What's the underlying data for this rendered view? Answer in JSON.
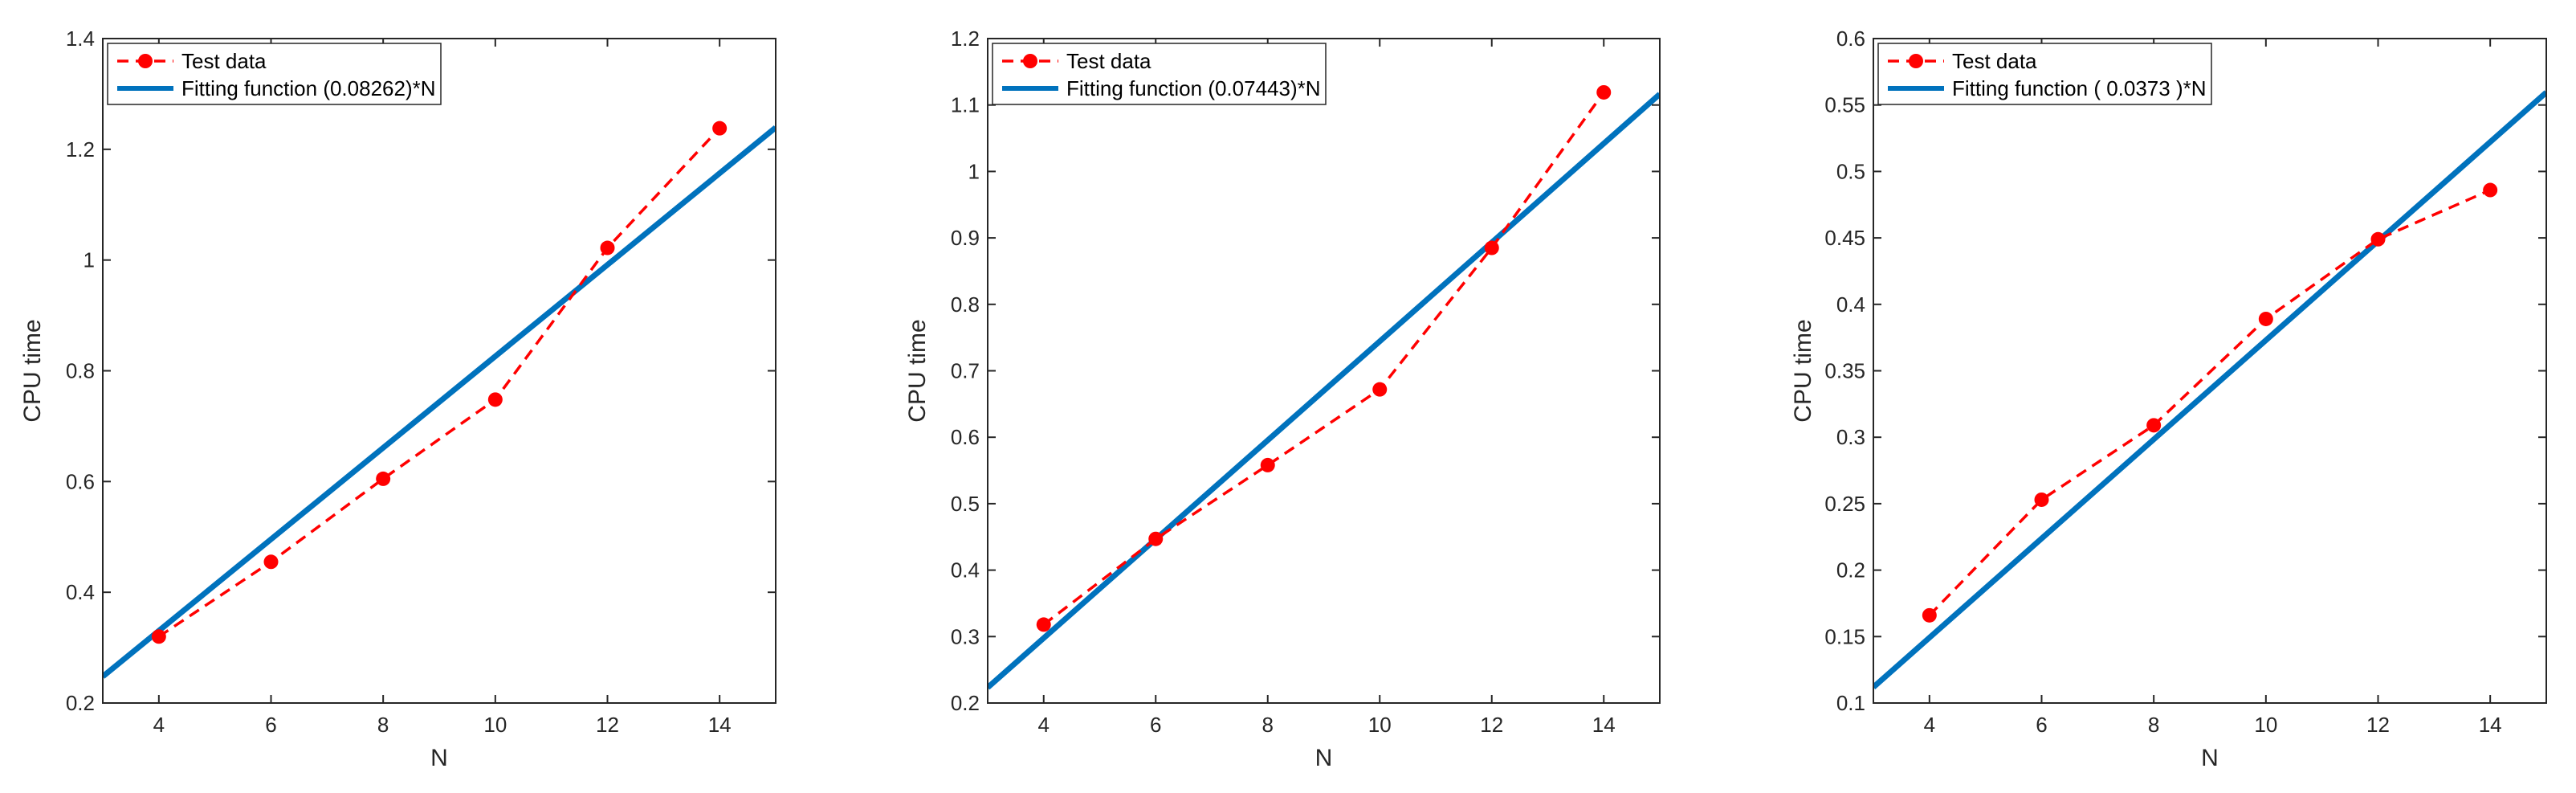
{
  "colors": {
    "test_data": "#ff0000",
    "fit_line": "#0072bd",
    "axes": "#262626",
    "legend_border": "#262626"
  },
  "chart_data": [
    {
      "type": "line",
      "xlabel": "N",
      "ylabel": "CPU time",
      "xlim": [
        3,
        15
      ],
      "ylim": [
        0.2,
        1.4
      ],
      "xticks": [
        4,
        6,
        8,
        10,
        12,
        14
      ],
      "yticks": [
        0.2,
        0.4,
        0.6,
        0.8,
        1,
        1.2,
        1.4
      ],
      "ytick_labels": [
        "0.2",
        "0.4",
        "0.6",
        "0.8",
        "1",
        "1.2",
        "1.4"
      ],
      "legend_location": "top-left",
      "series": [
        {
          "name": "Test data",
          "style": "dashed-with-markers",
          "x": [
            4,
            6,
            8,
            10,
            12,
            14
          ],
          "values": [
            0.32,
            0.455,
            0.605,
            0.748,
            1.022,
            1.238
          ]
        },
        {
          "name": "Fitting function (0.08262)*N",
          "style": "solid",
          "slope": 0.08262
        }
      ]
    },
    {
      "type": "line",
      "xlabel": "N",
      "ylabel": "CPU time",
      "xlim": [
        3,
        15
      ],
      "ylim": [
        0.2,
        1.2
      ],
      "xticks": [
        4,
        6,
        8,
        10,
        12,
        14
      ],
      "yticks": [
        0.2,
        0.3,
        0.4,
        0.5,
        0.6,
        0.7,
        0.8,
        0.9,
        1,
        1.1,
        1.2
      ],
      "ytick_labels": [
        "0.2",
        "0.3",
        "0.4",
        "0.5",
        "0.6",
        "0.7",
        "0.8",
        "0.9",
        "1",
        "1.1",
        "1.2"
      ],
      "legend_location": "top-left",
      "series": [
        {
          "name": "Test data",
          "style": "dashed-with-markers",
          "x": [
            4,
            6,
            8,
            10,
            12,
            14
          ],
          "values": [
            0.318,
            0.447,
            0.558,
            0.672,
            0.885,
            1.119
          ]
        },
        {
          "name": "Fitting function (0.07443)*N",
          "style": "solid",
          "slope": 0.07443
        }
      ]
    },
    {
      "type": "line",
      "xlabel": "N",
      "ylabel": "CPU time",
      "xlim": [
        3,
        15
      ],
      "ylim": [
        0.1,
        0.6
      ],
      "xticks": [
        4,
        6,
        8,
        10,
        12,
        14
      ],
      "yticks": [
        0.1,
        0.15,
        0.2,
        0.25,
        0.3,
        0.35,
        0.4,
        0.45,
        0.5,
        0.55,
        0.6
      ],
      "ytick_labels": [
        "0.1",
        "0.15",
        "0.2",
        "0.25",
        "0.3",
        "0.35",
        "0.4",
        "0.45",
        "0.5",
        "0.55",
        "0.6"
      ],
      "legend_location": "top-left",
      "series": [
        {
          "name": "Test data",
          "style": "dashed-with-markers",
          "x": [
            4,
            6,
            8,
            10,
            12,
            14
          ],
          "values": [
            0.166,
            0.253,
            0.309,
            0.389,
            0.449,
            0.486
          ]
        },
        {
          "name": "Fitting function ( 0.0373 )*N",
          "style": "solid",
          "slope": 0.0373
        }
      ]
    }
  ]
}
